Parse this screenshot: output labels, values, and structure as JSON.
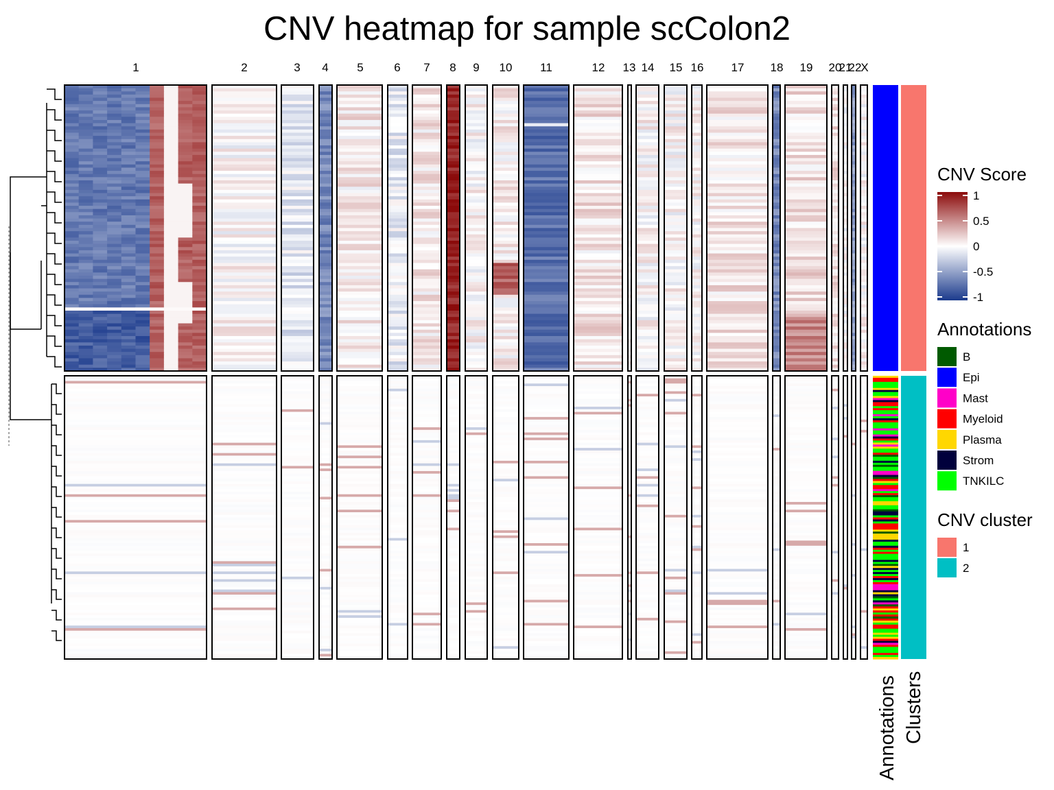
{
  "chart_data": {
    "type": "heatmap",
    "title": "CNV heatmap for sample scColon2",
    "chromosomes": [
      "1",
      "2",
      "3",
      "4",
      "5",
      "6",
      "7",
      "8",
      "9",
      "10",
      "11",
      "12",
      "13",
      "14",
      "15",
      "16",
      "17",
      "18",
      "19",
      "20",
      "21",
      "22",
      "X"
    ],
    "row_groups": [
      {
        "cnv_cluster": "1",
        "dominant_annotation": "Epi",
        "profile": {
          "1": "split: first part loss (-0.6), second part gain (+0.6) with neutral core",
          "2": "neutral",
          "3": "slight loss",
          "4": "loss (-0.6)",
          "5": "slight gain",
          "6": "slight loss",
          "7": "slight gain",
          "8": "strong gain (+0.9)",
          "9": "neutral",
          "10": "mixed, focal gain subgroup",
          "11": "loss (-0.7)",
          "12": "slight gain",
          "13": "neutral",
          "14": "neutral",
          "15": "neutral",
          "16": "neutral",
          "17": "slight gain",
          "18": "loss (-0.6)",
          "19": "gain subgroup",
          "20": "slight gain",
          "21": "neutral",
          "22": "loss",
          "X": "neutral"
        }
      },
      {
        "cnv_cluster": "2",
        "dominant_annotation": "mixed (TNKILC, Myeloid, Strom, Mast, B, Plasma)",
        "profile": "near neutral across all chromosomes with sparse small changes"
      }
    ],
    "color_scale": {
      "title": "CNV Score",
      "ticks": [
        "1",
        "0.5",
        "0",
        "-0.5",
        "-1"
      ],
      "range": [
        -1,
        1
      ],
      "colors": {
        "low": "#1b3a8c",
        "mid": "#ffffff",
        "high": "#8b0a0a"
      }
    },
    "annotations_legend": {
      "title": "Annotations",
      "items": [
        {
          "label": "B",
          "color": "#005a00"
        },
        {
          "label": "Epi",
          "color": "#0000ff"
        },
        {
          "label": "Mast",
          "color": "#ff00c8"
        },
        {
          "label": "Myeloid",
          "color": "#ff0000"
        },
        {
          "label": "Plasma",
          "color": "#ffd700"
        },
        {
          "label": "Strom",
          "color": "#00003c"
        },
        {
          "label": "TNKILC",
          "color": "#00ff00"
        }
      ]
    },
    "cluster_legend": {
      "title": "CNV cluster",
      "items": [
        {
          "label": "1",
          "color": "#f8766d"
        },
        {
          "label": "2",
          "color": "#00bfc4"
        }
      ]
    },
    "track_labels": {
      "annotations": "Annotations",
      "clusters": "Clusters"
    }
  }
}
